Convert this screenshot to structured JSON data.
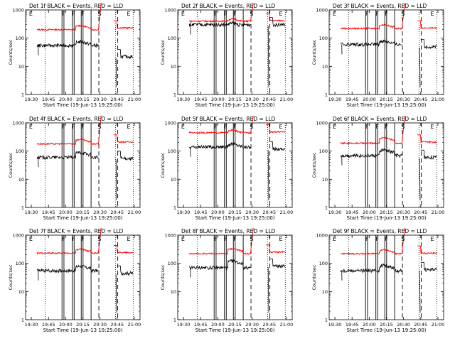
{
  "figure": {
    "panel_title_suffix": "BLACK = Events, RED = LLD",
    "xlabel": "Start Time (19-Jun-13 19:25:00)",
    "ylabel": "Counts/sec",
    "xticks": [
      "19:30",
      "19:45",
      "20:00",
      "20:15",
      "20:30",
      "20:45",
      "21:00"
    ],
    "yticks": [
      "1",
      "10",
      "100",
      "1000"
    ],
    "colors": {
      "events": "#000000",
      "lld": "#ff0000",
      "axes": "#000000"
    }
  },
  "chart_data": [
    {
      "type": "line",
      "title": "Det 1f",
      "det": "Det 1f",
      "xlabel": "Start Time (19-Jun-13 19:25:00)",
      "ylabel": "Counts/sec",
      "yscale": "log",
      "ylim": [
        1,
        1000
      ],
      "series": [
        {
          "name": "Events",
          "color": "#000000",
          "level": 55,
          "mid_rise": 75,
          "dip_end": 22
        },
        {
          "name": "LLD",
          "color": "#ff0000",
          "level": 200,
          "mid_rise": 280,
          "end_level": 230
        }
      ],
      "markers": [
        "E",
        "F",
        "F",
        "F",
        "S",
        "E"
      ]
    },
    {
      "type": "line",
      "title": "Det 2f",
      "det": "Det 2f",
      "xlabel": "Start Time (19-Jun-13 19:25:00)",
      "ylabel": "Counts/sec",
      "yscale": "log",
      "ylim": [
        1,
        1000
      ],
      "series": [
        {
          "name": "Events",
          "color": "#000000",
          "level": 300,
          "mid_rise": 340,
          "dip_end": 300
        },
        {
          "name": "LLD",
          "color": "#ff0000",
          "level": 400,
          "mid_rise": 480,
          "end_level": 420
        }
      ],
      "markers": [
        "E",
        "F",
        "F",
        "F",
        "S",
        "E"
      ]
    },
    {
      "type": "line",
      "title": "Det 3f",
      "det": "Det 3f",
      "xlabel": "Start Time (19-Jun-13 19:25:00)",
      "ylabel": "Counts/sec",
      "yscale": "log",
      "ylim": [
        1,
        1000
      ],
      "series": [
        {
          "name": "Events",
          "color": "#000000",
          "level": 60,
          "mid_rise": 80,
          "dip_end": 50
        },
        {
          "name": "LLD",
          "color": "#ff0000",
          "level": 220,
          "mid_rise": 300,
          "end_level": 230
        }
      ],
      "markers": [
        "E",
        "F",
        "F",
        "F",
        "S",
        "E"
      ]
    },
    {
      "type": "line",
      "title": "Det 4f",
      "det": "Det 4f",
      "xlabel": "Start Time (19-Jun-13 19:25:00)",
      "ylabel": "Counts/sec",
      "yscale": "log",
      "ylim": [
        1,
        1000
      ],
      "series": [
        {
          "name": "Events",
          "color": "#000000",
          "level": 60,
          "mid_rise": 90,
          "dip_end": 55
        },
        {
          "name": "LLD",
          "color": "#ff0000",
          "level": 180,
          "mid_rise": 260,
          "end_level": 210
        }
      ],
      "markers": [
        "E",
        "F",
        "F",
        "F",
        "S",
        "E"
      ]
    },
    {
      "type": "line",
      "title": "Det 5f",
      "det": "Det 5f",
      "xlabel": "Start Time (19-Jun-13 19:25:00)",
      "ylabel": "Counts/sec",
      "yscale": "log",
      "ylim": [
        1,
        1000
      ],
      "series": [
        {
          "name": "Events",
          "color": "#000000",
          "level": 140,
          "mid_rise": 180,
          "dip_end": 120
        },
        {
          "name": "LLD",
          "color": "#ff0000",
          "level": 450,
          "mid_rise": 550,
          "end_level": 480
        }
      ],
      "markers": [
        "E",
        "F",
        "F",
        "F",
        "S",
        "E"
      ]
    },
    {
      "type": "line",
      "title": "Det 6f",
      "det": "Det 6f",
      "xlabel": "Start Time (19-Jun-13 19:25:00)",
      "ylabel": "Counts/sec",
      "yscale": "log",
      "ylim": [
        1,
        1000
      ],
      "series": [
        {
          "name": "Events",
          "color": "#000000",
          "level": 70,
          "mid_rise": 110,
          "dip_end": 60
        },
        {
          "name": "LLD",
          "color": "#ff0000",
          "level": 190,
          "mid_rise": 300,
          "end_level": 210
        }
      ],
      "markers": [
        "E",
        "F",
        "F",
        "F",
        "S",
        "E"
      ]
    },
    {
      "type": "line",
      "title": "Det 7f",
      "det": "Det 7f",
      "xlabel": "Start Time (19-Jun-13 19:25:00)",
      "ylabel": "Counts/sec",
      "yscale": "log",
      "ylim": [
        1,
        1000
      ],
      "series": [
        {
          "name": "Events",
          "color": "#000000",
          "level": 55,
          "mid_rise": 80,
          "dip_end": 45
        },
        {
          "name": "LLD",
          "color": "#ff0000",
          "level": 230,
          "mid_rise": 320,
          "end_level": 240
        }
      ],
      "markers": [
        "E",
        "F",
        "F",
        "F",
        "S",
        "E"
      ]
    },
    {
      "type": "line",
      "title": "Det 8f",
      "det": "Det 8f",
      "xlabel": "Start Time (19-Jun-13 19:25:00)",
      "ylabel": "Counts/sec",
      "yscale": "log",
      "ylim": [
        1,
        1000
      ],
      "series": [
        {
          "name": "Events",
          "color": "#000000",
          "level": 70,
          "mid_rise": 120,
          "dip_end": 80
        },
        {
          "name": "LLD",
          "color": "#ff0000",
          "level": 220,
          "mid_rise": 330,
          "end_level": 250
        }
      ],
      "markers": [
        "E",
        "F",
        "F",
        "F",
        "S",
        "E"
      ]
    },
    {
      "type": "line",
      "title": "Det 9f",
      "det": "Det 9f",
      "xlabel": "Start Time (19-Jun-13 19:25:00)",
      "ylabel": "Counts/sec",
      "yscale": "log",
      "ylim": [
        1,
        1000
      ],
      "series": [
        {
          "name": "Events",
          "color": "#000000",
          "level": 55,
          "mid_rise": 85,
          "dip_end": 60
        },
        {
          "name": "LLD",
          "color": "#ff0000",
          "level": 220,
          "mid_rise": 300,
          "end_level": 230
        }
      ],
      "markers": [
        "E",
        "F",
        "F",
        "F",
        "S",
        "E"
      ]
    }
  ]
}
